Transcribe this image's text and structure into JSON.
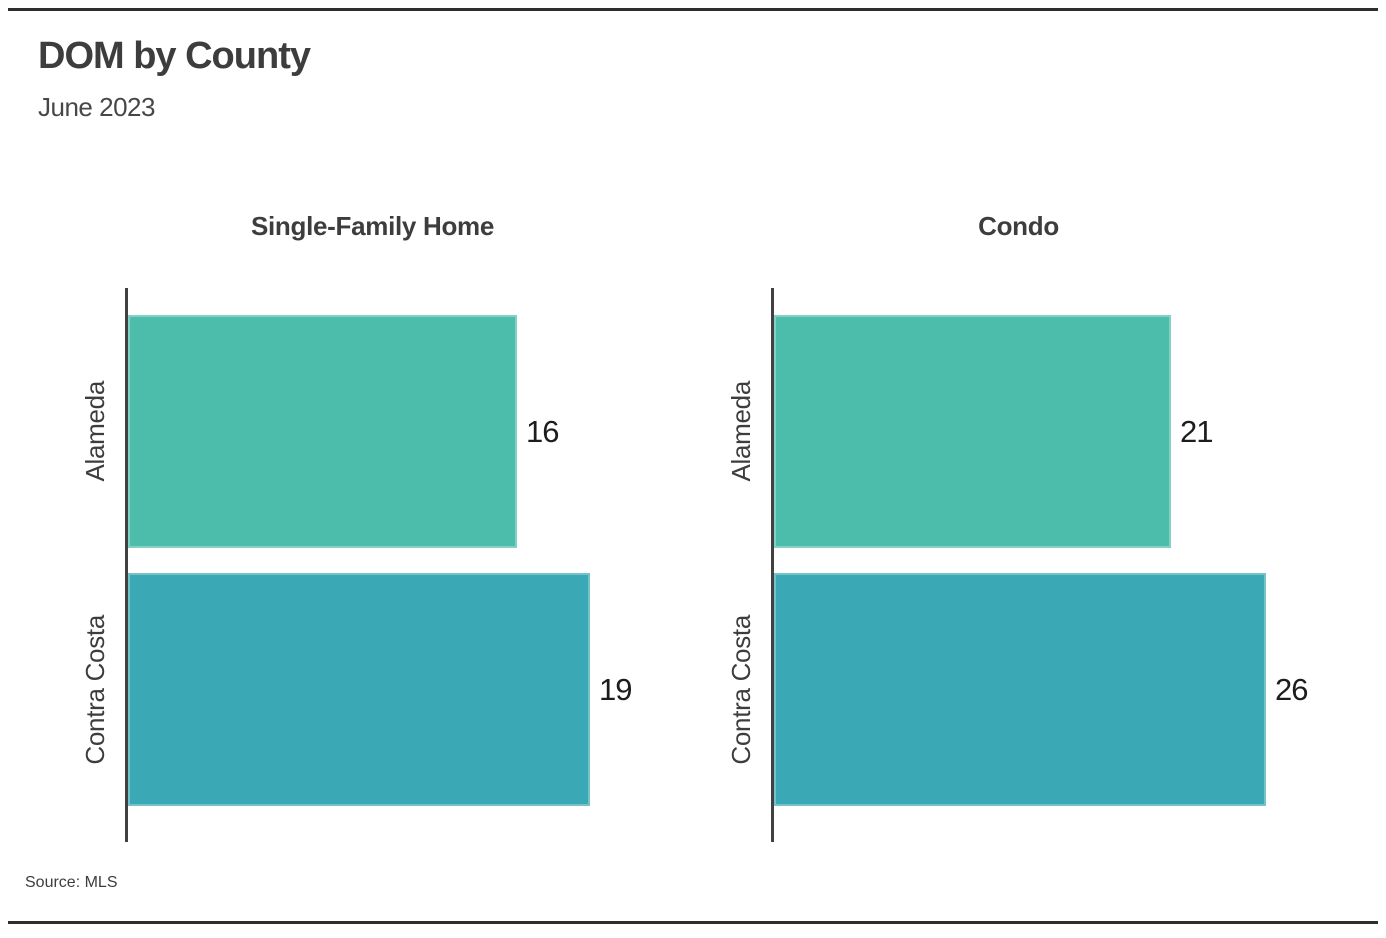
{
  "chart_data": {
    "type": "bar",
    "orientation": "horizontal",
    "title": "DOM by County",
    "subtitle": "June 2023",
    "source": "Source: MLS",
    "categories": [
      "Alameda",
      "Contra Costa"
    ],
    "panels": [
      {
        "title": "Single-Family Home",
        "values": [
          16,
          19
        ],
        "xmax_hint": 22.5
      },
      {
        "title": "Condo",
        "values": [
          21,
          26
        ],
        "xmax_hint": 28.9
      }
    ],
    "bar_colors": [
      "#4cbdab",
      "#3aa8b5"
    ],
    "value_labels": true,
    "grid": false,
    "legend": false,
    "axis_color": "#414141",
    "rule_color": "#2e2e2e"
  }
}
